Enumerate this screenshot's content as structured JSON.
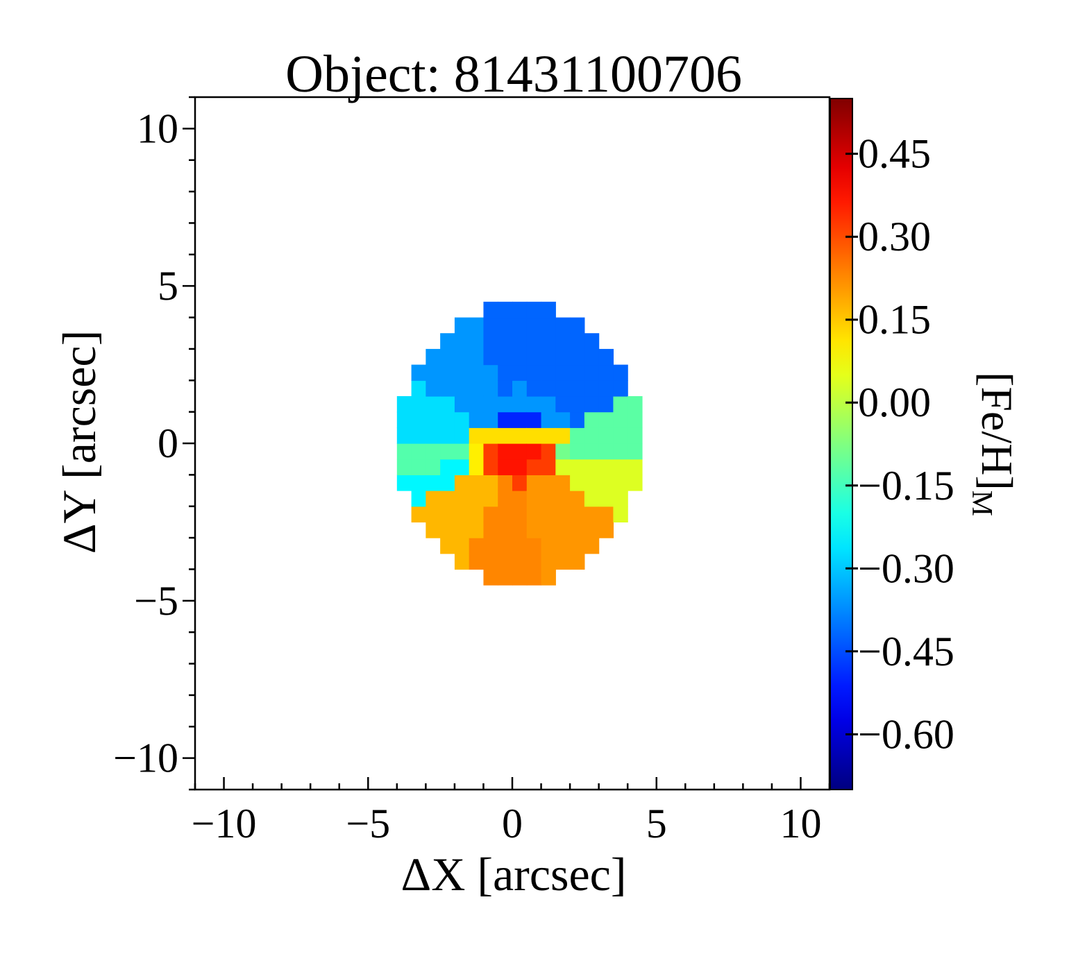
{
  "chart_data": {
    "type": "heatmap",
    "title": "Object: 81431100706",
    "xlabel": "ΔX [arcsec]",
    "ylabel": "ΔY [arcsec]",
    "xlim": [
      -11,
      11
    ],
    "ylim": [
      -11,
      11
    ],
    "x_ticks": [
      -10,
      -5,
      0,
      5,
      10
    ],
    "y_ticks": [
      -10,
      -5,
      0,
      5,
      10
    ],
    "tick_labels_x": [
      "−10",
      "−5",
      "0",
      "5",
      "10"
    ],
    "tick_labels_y": [
      "−10",
      "−5",
      "0",
      "5",
      "10"
    ],
    "colorbar": {
      "label_main": "[Fe/H]",
      "label_sub": "M",
      "colormap": "jet",
      "vmin": -0.7,
      "vmax": 0.55,
      "ticks": [
        0.45,
        0.3,
        0.15,
        0.0,
        -0.15,
        -0.3,
        -0.45,
        -0.6
      ],
      "tick_labels": [
        "0.45",
        "0.30",
        "0.15",
        "0.00",
        "−0.15",
        "−0.30",
        "−0.45",
        "−0.60"
      ]
    },
    "map": {
      "pixel_scale_arcsec": 0.5,
      "ellipse_center": [
        0.2,
        0.0
      ],
      "ellipse_semi_axes": [
        4.3,
        4.4
      ],
      "bins": [
        {
          "region": "north-center",
          "feh": -0.42
        },
        {
          "region": "north-west",
          "feh": -0.36
        },
        {
          "region": "west-upper",
          "feh": -0.27
        },
        {
          "region": "west-middle",
          "feh": -0.13
        },
        {
          "region": "west-lower",
          "feh": -0.24
        },
        {
          "region": "south-west",
          "feh": 0.17
        },
        {
          "region": "south",
          "feh": 0.23
        },
        {
          "region": "south-east-lower",
          "feh": 0.21
        },
        {
          "region": "east-lower",
          "feh": 0.04
        },
        {
          "region": "east-middle",
          "feh": -0.12
        },
        {
          "region": "inner-north",
          "feh": -0.36
        },
        {
          "region": "inner-north-core",
          "feh": -0.5
        },
        {
          "region": "inner-ring",
          "feh": -0.27
        },
        {
          "region": "inner-center-band",
          "feh": 0.12
        },
        {
          "region": "inner-left-spot",
          "feh": 0.1
        },
        {
          "region": "inner-right-spot",
          "feh": -0.09
        },
        {
          "region": "core",
          "feh": 0.37
        },
        {
          "region": "core-ring",
          "feh": 0.32
        }
      ]
    }
  }
}
